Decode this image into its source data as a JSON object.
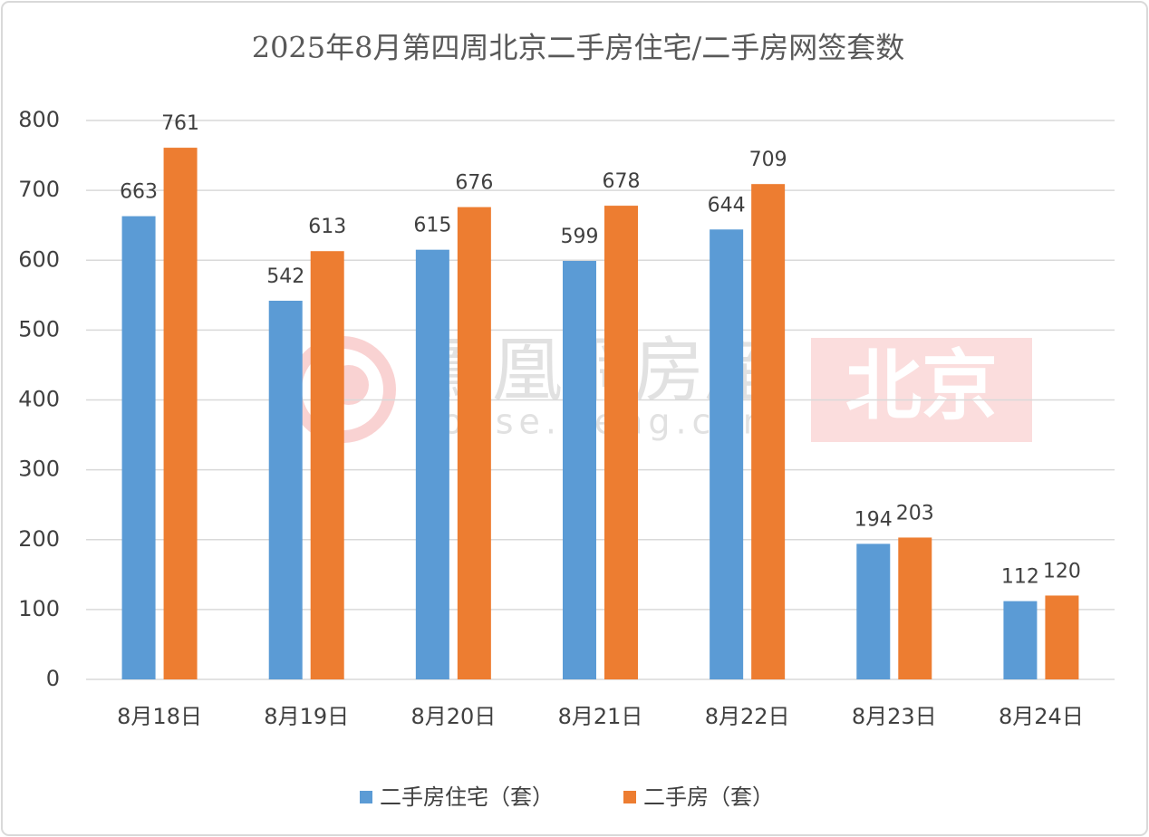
{
  "chart_data": {
    "type": "bar",
    "title": "2025年8月第四周北京二手房住宅/二手房网签套数",
    "categories": [
      "8月18日",
      "8月19日",
      "8月20日",
      "8月21日",
      "8月22日",
      "8月23日",
      "8月24日"
    ],
    "series": [
      {
        "name": "二手房住宅（套）",
        "color": "#5b9bd5",
        "values": [
          663,
          542,
          615,
          599,
          644,
          194,
          112
        ]
      },
      {
        "name": "二手房（套）",
        "color": "#ed7d31",
        "values": [
          761,
          613,
          676,
          678,
          709,
          203,
          120
        ]
      }
    ],
    "ylim": [
      0,
      800
    ],
    "yticks": [
      0,
      100,
      200,
      300,
      400,
      500,
      600,
      700,
      800
    ],
    "grid": true,
    "legend": "bottom"
  },
  "watermark": {
    "brand": "鳳凰網房産",
    "url": "house.ifeng.com",
    "city": "北京"
  }
}
